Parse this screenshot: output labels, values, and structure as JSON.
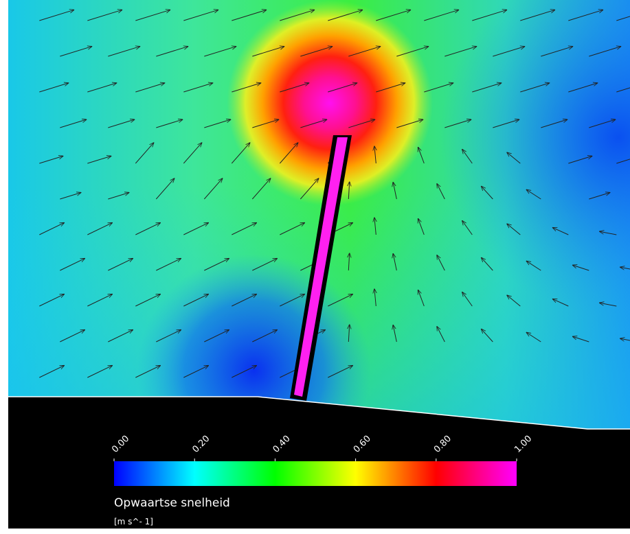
{
  "colorbar": {
    "range": [
      0,
      1
    ],
    "ticks": [
      {
        "value": 0,
        "label": "0.00"
      },
      {
        "value": 0.2,
        "label": "0.20"
      },
      {
        "value": 0.4,
        "label": "0.40"
      },
      {
        "value": 0.6,
        "label": "0.60"
      },
      {
        "value": 0.8,
        "label": "0.80"
      },
      {
        "value": 1,
        "label": "1.00"
      }
    ],
    "label": "Opwaartse snelheid",
    "unit": "[m s^- 1]"
  }
}
